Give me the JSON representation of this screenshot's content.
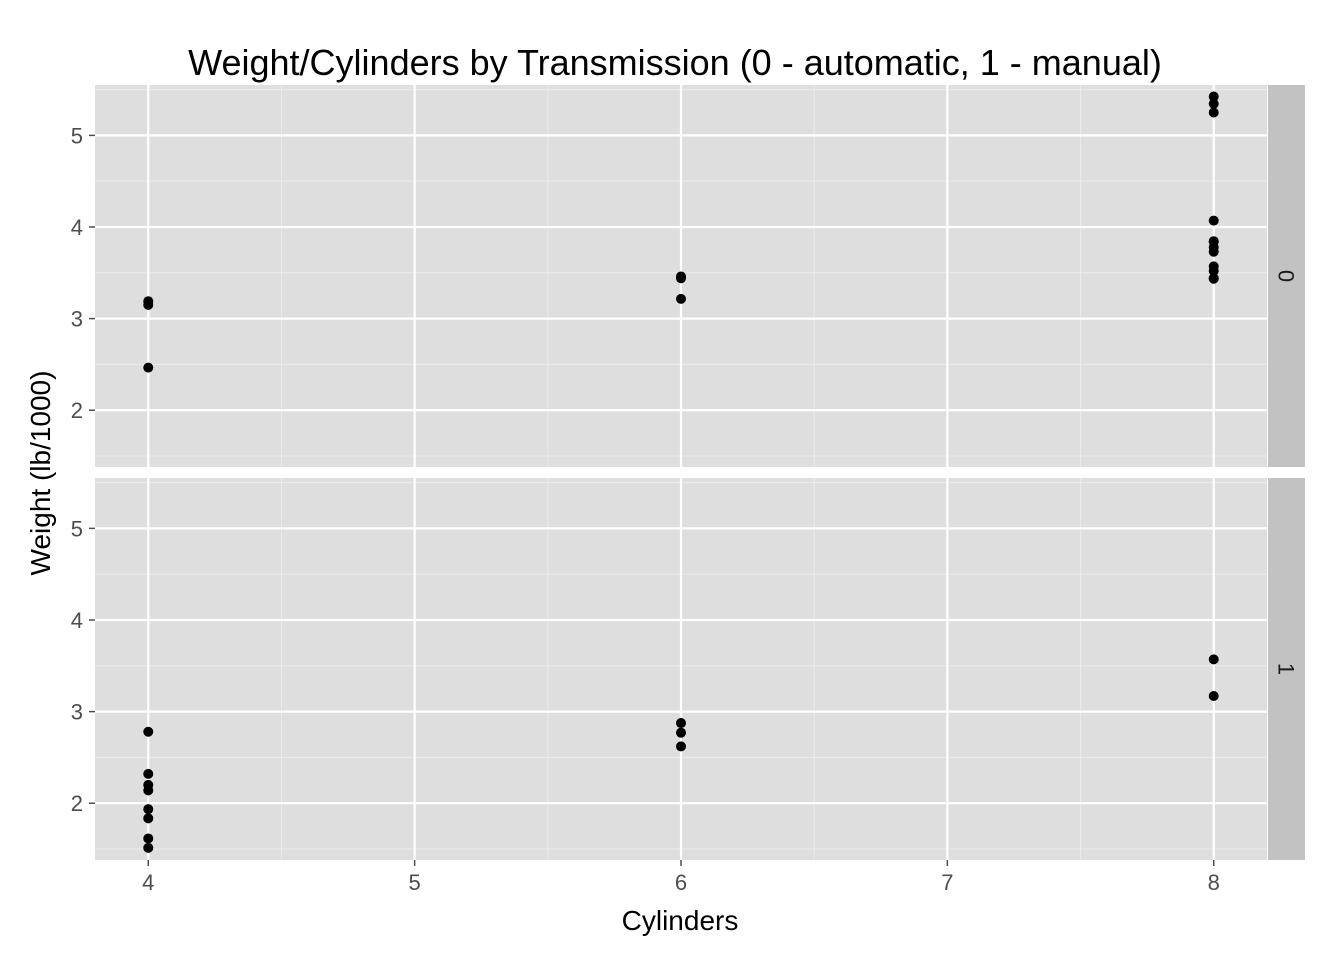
{
  "chart_data": {
    "type": "scatter",
    "title": "Weight/Cylinders by Transmission (0 - automatic, 1 - manual)",
    "xlabel": "Cylinders",
    "ylabel": "Weight (lb/1000)",
    "x_ticks": [
      4,
      5,
      6,
      7,
      8
    ],
    "y_ticks": [
      2,
      3,
      4,
      5
    ],
    "xlim": [
      3.8,
      8.2
    ],
    "ylim": [
      1.38,
      5.55
    ],
    "grid": true,
    "facet_by": "am",
    "panels": [
      {
        "label": "0",
        "points": [
          {
            "x": 4,
            "y": 2.465
          },
          {
            "x": 4,
            "y": 3.19
          },
          {
            "x": 4,
            "y": 3.15
          },
          {
            "x": 6,
            "y": 3.215
          },
          {
            "x": 6,
            "y": 3.44
          },
          {
            "x": 6,
            "y": 3.46
          },
          {
            "x": 8,
            "y": 3.44
          },
          {
            "x": 8,
            "y": 3.57
          },
          {
            "x": 8,
            "y": 4.07
          },
          {
            "x": 8,
            "y": 3.73
          },
          {
            "x": 8,
            "y": 3.78
          },
          {
            "x": 8,
            "y": 5.25
          },
          {
            "x": 8,
            "y": 5.424
          },
          {
            "x": 8,
            "y": 5.345
          },
          {
            "x": 8,
            "y": 3.52
          },
          {
            "x": 8,
            "y": 3.435
          },
          {
            "x": 8,
            "y": 3.84
          },
          {
            "x": 8,
            "y": 3.845
          }
        ]
      },
      {
        "label": "1",
        "points": [
          {
            "x": 4,
            "y": 2.32
          },
          {
            "x": 4,
            "y": 2.2
          },
          {
            "x": 4,
            "y": 1.615
          },
          {
            "x": 4,
            "y": 1.835
          },
          {
            "x": 4,
            "y": 1.935
          },
          {
            "x": 4,
            "y": 2.14
          },
          {
            "x": 4,
            "y": 1.513
          },
          {
            "x": 4,
            "y": 2.78
          },
          {
            "x": 6,
            "y": 2.62
          },
          {
            "x": 6,
            "y": 2.875
          },
          {
            "x": 6,
            "y": 2.77
          },
          {
            "x": 8,
            "y": 3.17
          },
          {
            "x": 8,
            "y": 3.57
          }
        ]
      }
    ]
  },
  "colors": {
    "panel_background": "#dedede",
    "strip_background": "#c2c2c2",
    "major_grid": "#ffffff",
    "minor_grid": "#ebebeb",
    "point": "#000000"
  }
}
